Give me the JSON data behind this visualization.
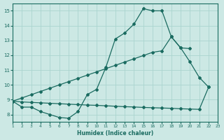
{
  "xlabel": "Humidex (Indice chaleur)",
  "bg_color": "#cce8e4",
  "grid_color": "#aad4cf",
  "line_color": "#1a6b60",
  "xlim": [
    1,
    23
  ],
  "ylim": [
    7.5,
    15.5
  ],
  "xticks": [
    1,
    2,
    3,
    4,
    5,
    6,
    7,
    8,
    9,
    10,
    11,
    12,
    13,
    14,
    15,
    16,
    17,
    18,
    19,
    20,
    21,
    22,
    23
  ],
  "yticks": [
    8,
    9,
    10,
    11,
    12,
    13,
    14,
    15
  ],
  "curve_x": [
    1,
    2,
    3,
    4,
    5,
    6,
    7,
    8,
    9,
    10,
    11,
    12,
    13,
    14,
    15,
    16,
    17,
    18,
    19,
    20,
    21,
    22
  ],
  "curve_y": [
    8.9,
    8.5,
    8.5,
    8.2,
    8.0,
    7.8,
    7.75,
    8.2,
    9.35,
    9.7,
    11.2,
    13.1,
    13.5,
    14.1,
    15.15,
    15.0,
    15.0,
    13.25,
    12.5,
    11.55,
    10.5,
    9.85
  ],
  "line2_x": [
    1,
    2,
    3,
    4,
    5,
    6,
    7,
    8,
    9,
    10,
    11,
    12,
    13,
    14,
    15,
    16,
    17,
    18,
    19,
    20,
    21,
    22
  ],
  "line2_y": [
    8.9,
    8.85,
    8.82,
    8.79,
    8.76,
    8.73,
    8.7,
    8.67,
    8.64,
    8.62,
    8.59,
    8.56,
    8.53,
    8.51,
    8.48,
    8.46,
    8.44,
    8.42,
    8.39,
    8.37,
    8.35,
    9.85
  ],
  "line3_x": [
    1,
    2,
    3,
    4,
    5,
    6,
    7,
    8,
    9,
    10,
    11,
    12,
    13,
    14,
    15,
    16,
    17,
    18,
    19,
    20
  ],
  "line3_y": [
    8.9,
    9.12,
    9.34,
    9.56,
    9.78,
    10.0,
    10.22,
    10.44,
    10.66,
    10.88,
    11.1,
    11.32,
    11.54,
    11.76,
    11.98,
    12.2,
    12.3,
    13.25,
    12.5,
    12.45
  ]
}
